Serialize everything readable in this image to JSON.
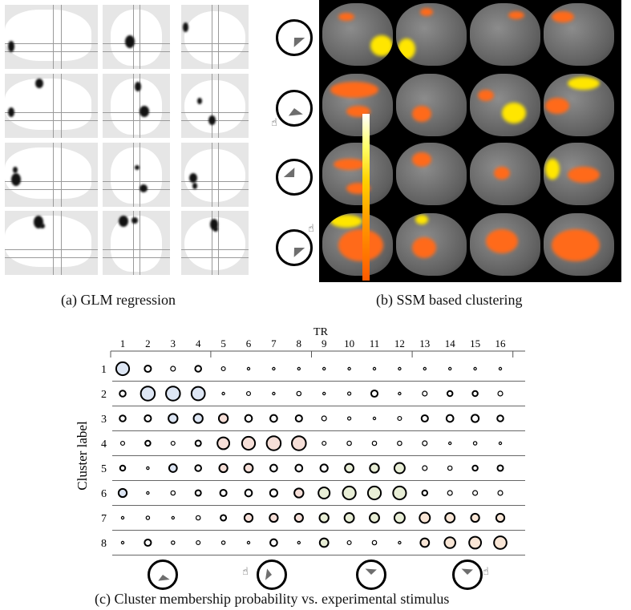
{
  "captions": {
    "a": "(a) GLM regression",
    "b": "(b) SSM based clustering",
    "c": "(c) Cluster membership probability vs. experimental stimulus"
  },
  "ssm": {
    "stimuli": [
      {
        "orientation": "right",
        "cue": false
      },
      {
        "orientation": "down-right",
        "cue": true
      },
      {
        "orientation": "left",
        "cue": false
      },
      {
        "orientation": "right",
        "cue": true
      }
    ],
    "colorbar": [
      "#ffffff",
      "#ffff66",
      "#ffd000",
      "#ff9900",
      "#ff5a00"
    ]
  },
  "chart_data": {
    "type": "bubble-matrix",
    "xlabel": "TR",
    "ylabel": "Cluster label",
    "x": [
      "1",
      "2",
      "3",
      "4",
      "5",
      "6",
      "7",
      "8",
      "9",
      "10",
      "11",
      "12",
      "13",
      "14",
      "15",
      "16"
    ],
    "y": [
      "1",
      "2",
      "3",
      "4",
      "5",
      "6",
      "7",
      "8"
    ],
    "values": [
      [
        0.6,
        0.3,
        0.22,
        0.28,
        0.18,
        0.06,
        0.06,
        0.04,
        0.0,
        0.1,
        0.06,
        0.05,
        0.04,
        0.04,
        0.04,
        0.04
      ],
      [
        0.28,
        0.65,
        0.65,
        0.62,
        0.08,
        0.18,
        0.05,
        0.2,
        0.08,
        0.15,
        0.3,
        0.1,
        0.22,
        0.24,
        0.24,
        0.22
      ],
      [
        0.28,
        0.3,
        0.42,
        0.42,
        0.42,
        0.32,
        0.32,
        0.3,
        0.22,
        0.15,
        0.07,
        0.18,
        0.3,
        0.32,
        0.34,
        0.28
      ],
      [
        0.18,
        0.24,
        0.18,
        0.26,
        0.55,
        0.6,
        0.65,
        0.65,
        0.18,
        0.2,
        0.2,
        0.2,
        0.22,
        0.05,
        0.16,
        0.08
      ],
      [
        0.24,
        0.12,
        0.36,
        0.28,
        0.38,
        0.4,
        0.32,
        0.32,
        0.34,
        0.4,
        0.42,
        0.48,
        0.22,
        0.2,
        0.24,
        0.26
      ],
      [
        0.38,
        0.09,
        0.2,
        0.26,
        0.3,
        0.32,
        0.34,
        0.42,
        0.52,
        0.6,
        0.6,
        0.6,
        0.24,
        0.22,
        0.22,
        0.22
      ],
      [
        0.07,
        0.16,
        0.07,
        0.2,
        0.26,
        0.38,
        0.38,
        0.38,
        0.42,
        0.44,
        0.44,
        0.48,
        0.48,
        0.44,
        0.38,
        0.38
      ],
      [
        0.06,
        0.3,
        0.16,
        0.18,
        0.16,
        0.06,
        0.32,
        0.04,
        0.4,
        0.18,
        0.2,
        0.06,
        0.4,
        0.5,
        0.55,
        0.58
      ]
    ],
    "column_groups": [
      {
        "cols": [
          1,
          4
        ],
        "color": "#dde6f4"
      },
      {
        "cols": [
          5,
          8
        ],
        "color": "#f6dfd8"
      },
      {
        "cols": [
          9,
          12
        ],
        "color": "#e8eed6"
      },
      {
        "cols": [
          13,
          16
        ],
        "color": "#f9e6d6"
      }
    ],
    "stimuli": [
      {
        "orientation": "down-right",
        "cue": false
      },
      {
        "orientation": "down-left",
        "cue": true
      },
      {
        "orientation": "up-left",
        "cue": false
      },
      {
        "orientation": "up-left",
        "cue": true
      }
    ]
  }
}
